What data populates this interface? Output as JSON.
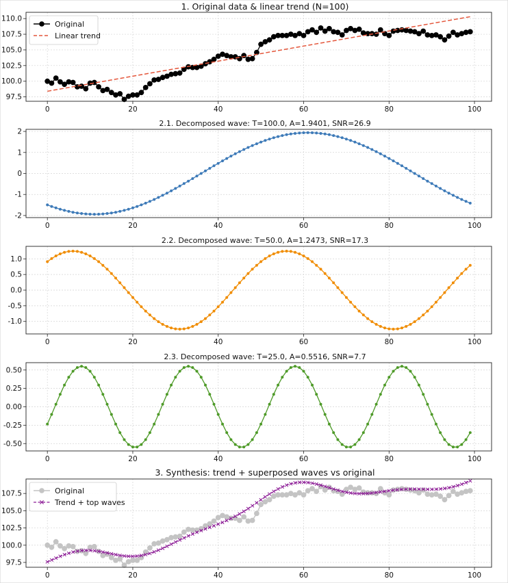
{
  "chart_data": [
    {
      "id": "p1",
      "type": "line",
      "title": "1. Original data & linear trend (N=100)",
      "xlim": [
        -5,
        104
      ],
      "ylim": [
        96.8,
        111.0
      ],
      "xticks": [
        0,
        20,
        40,
        60,
        80,
        100
      ],
      "yticks": [
        97.5,
        100.0,
        102.5,
        105.0,
        107.5,
        110.0
      ],
      "ytick_labels": [
        "97.5",
        "100.0",
        "102.5",
        "105.0",
        "107.5",
        "110.0"
      ],
      "grid": true,
      "legend": {
        "placement": "top-left",
        "entries": [
          {
            "label": "Original",
            "color": "#000000",
            "style": "line-dot"
          },
          {
            "label": "Linear trend",
            "color": "#e4553a",
            "style": "dashed"
          }
        ]
      },
      "series": [
        {
          "name": "Original",
          "color": "#000000",
          "style": "line-dot",
          "x_start": 0,
          "values": [
            100.0,
            99.7,
            100.5,
            99.9,
            99.5,
            99.9,
            99.8,
            99.1,
            99.2,
            98.8,
            99.7,
            99.8,
            99.1,
            98.5,
            98.7,
            98.2,
            97.8,
            98.0,
            97.1,
            97.6,
            97.8,
            97.8,
            98.2,
            99.0,
            99.6,
            100.2,
            100.3,
            100.6,
            100.8,
            101.1,
            101.2,
            101.3,
            101.9,
            102.3,
            102.2,
            102.2,
            102.4,
            102.8,
            103.1,
            103.5,
            104.0,
            104.3,
            104.1,
            103.9,
            103.9,
            103.6,
            104.1,
            103.5,
            103.6,
            104.6,
            105.9,
            106.3,
            106.6,
            107.1,
            107.3,
            107.3,
            107.3,
            107.5,
            107.3,
            107.6,
            107.3,
            107.9,
            108.2,
            107.8,
            108.5,
            108.0,
            108.4,
            107.9,
            107.8,
            107.4,
            108.1,
            108.4,
            108.1,
            108.3,
            107.7,
            107.6,
            107.6,
            107.5,
            108.2,
            107.6,
            107.3,
            108.0,
            108.1,
            108.2,
            108.1,
            108.0,
            107.9,
            107.6,
            108.0,
            107.4,
            107.3,
            107.4,
            107.1,
            106.6,
            107.2,
            107.8,
            107.4,
            107.6,
            107.8,
            107.9
          ]
        },
        {
          "name": "Linear trend",
          "color": "#e4553a",
          "style": "dashed",
          "x": [
            0,
            99
          ],
          "values": [
            98.4,
            110.3
          ]
        }
      ]
    },
    {
      "id": "p2",
      "type": "line",
      "title": "2.1. Decomposed wave: T=100.0, A=1.9401, SNR=26.9",
      "xlim": [
        -5,
        104
      ],
      "ylim": [
        -2.1,
        2.1
      ],
      "xticks": [
        0,
        20,
        40,
        60,
        80,
        100
      ],
      "yticks": [
        -2,
        -1,
        0,
        1,
        2
      ],
      "ytick_labels": [
        "-2",
        "-1",
        "0",
        "1",
        "2"
      ],
      "grid": true,
      "wave": {
        "amplitude": 1.9401,
        "period": 100.0,
        "peak_x": 61,
        "n": 100,
        "color": "#3d7ab8"
      }
    },
    {
      "id": "p3",
      "type": "line",
      "title": "2.2. Decomposed wave: T=50.0, A=1.2473, SNR=17.3",
      "xlim": [
        -5,
        104
      ],
      "ylim": [
        -1.4,
        1.4
      ],
      "xticks": [
        0,
        20,
        40,
        60,
        80,
        100
      ],
      "yticks": [
        -1.0,
        -0.5,
        0.0,
        0.5,
        1.0
      ],
      "ytick_labels": [
        "-1.0",
        "-0.5",
        "0.0",
        "0.5",
        "1.0"
      ],
      "grid": true,
      "wave": {
        "amplitude": 1.2473,
        "period": 50.0,
        "peak_x": 6,
        "n": 100,
        "color": "#f08c00"
      }
    },
    {
      "id": "p4",
      "type": "line",
      "title": "2.3. Decomposed wave: T=25.0, A=0.5516, SNR=7.7",
      "xlim": [
        -5,
        104
      ],
      "ylim": [
        -0.6,
        0.6
      ],
      "xticks": [
        0,
        20,
        40,
        60,
        80,
        100
      ],
      "yticks": [
        -0.5,
        -0.25,
        0.0,
        0.25,
        0.5
      ],
      "ytick_labels": [
        "-0.50",
        "-0.25",
        "0.00",
        "0.25",
        "0.50"
      ],
      "grid": true,
      "wave": {
        "amplitude": 0.5516,
        "period": 25.0,
        "peak_x": 8,
        "n": 100,
        "color": "#4e9a28"
      }
    },
    {
      "id": "p5",
      "type": "line",
      "title": "3. Synthesis: trend + superposed waves vs original",
      "xlim": [
        -5,
        104
      ],
      "ylim": [
        96.8,
        109.6
      ],
      "xticks": [
        0,
        20,
        40,
        60,
        80,
        100
      ],
      "yticks": [
        97.5,
        100.0,
        102.5,
        105.0,
        107.5
      ],
      "ytick_labels": [
        "97.5",
        "100.0",
        "102.5",
        "105.0",
        "107.5"
      ],
      "grid": true,
      "legend": {
        "placement": "top-left",
        "entries": [
          {
            "label": "Original",
            "color": "#c4c4c4",
            "style": "line-dot"
          },
          {
            "label": "Trend + top waves",
            "color": "#8c1c96",
            "style": "dashed-x"
          }
        ]
      },
      "series": [
        {
          "name": "Original",
          "color": "#c4c4c4",
          "style": "line-dot",
          "ref": "p1.Original"
        },
        {
          "name": "Trend + top waves",
          "color": "#8c1c96",
          "style": "dashed-x",
          "composed_from": [
            "p1.Linear trend",
            "p2",
            "p3",
            "p4"
          ]
        }
      ]
    }
  ]
}
